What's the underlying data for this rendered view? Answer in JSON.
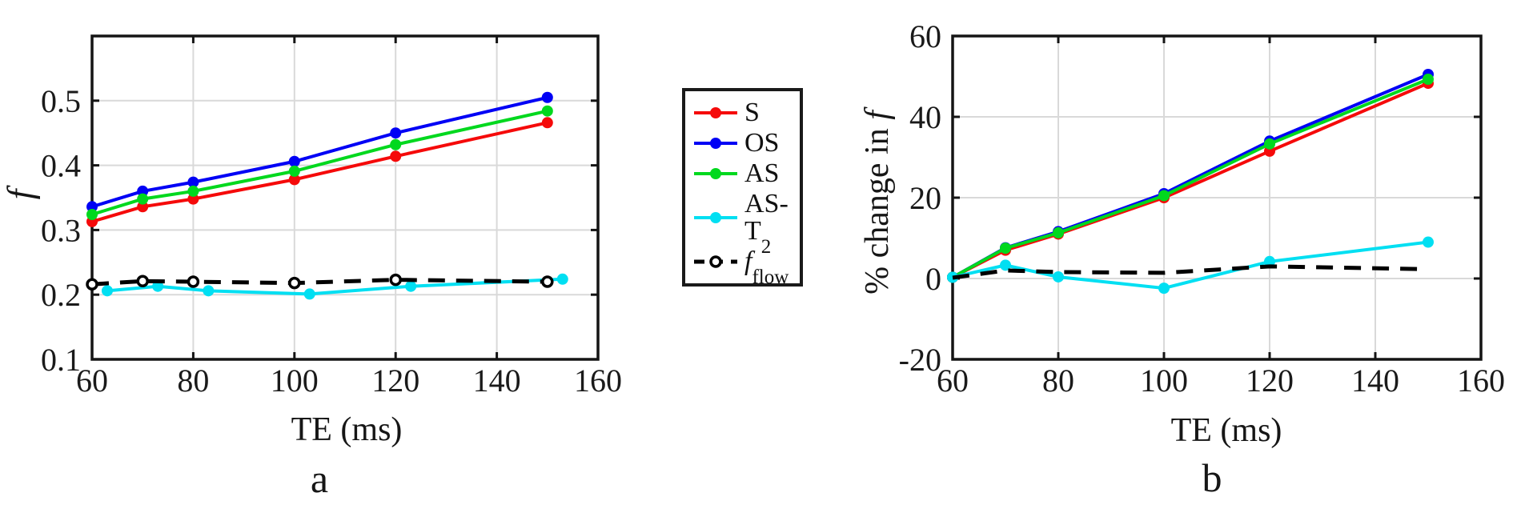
{
  "colors": {
    "red": "#f50a0a",
    "blue": "#0000f5",
    "green": "#00d81e",
    "cyan": "#00dff2",
    "black": "#000000",
    "axis": "#141414",
    "grid": "#d9d9d9",
    "tick_label": "#1a1a1a",
    "background": "#ffffff"
  },
  "legend": {
    "items": [
      {
        "label": "S",
        "sub": "",
        "color_key": "red",
        "line": "solid",
        "marker": "filled"
      },
      {
        "label": "OS",
        "sub": "",
        "color_key": "blue",
        "line": "solid",
        "marker": "filled"
      },
      {
        "label": "AS",
        "sub": "",
        "color_key": "green",
        "line": "solid",
        "marker": "filled"
      },
      {
        "label": "AS-T",
        "sub": "2",
        "color_key": "cyan",
        "line": "solid",
        "marker": "filled"
      },
      {
        "label": "f",
        "sub": "flow",
        "color_key": "black",
        "line": "dashed",
        "marker": "open"
      }
    ]
  },
  "chart_data": [
    {
      "type": "line",
      "caption": "a",
      "xlabel": "TE (ms)",
      "ylabel": "f",
      "xlim": [
        60,
        160
      ],
      "ylim": [
        0.1,
        0.6
      ],
      "xticks": [
        60,
        80,
        100,
        120,
        140,
        160
      ],
      "yticks": [
        0.1,
        0.2,
        0.3,
        0.4,
        0.5
      ],
      "ytick_decimals": 1,
      "grid": true,
      "series": [
        {
          "name": "S",
          "color_key": "red",
          "dash": false,
          "marker": "filled",
          "x": [
            60,
            70,
            80,
            100,
            120,
            150
          ],
          "y": [
            0.313,
            0.336,
            0.348,
            0.378,
            0.414,
            0.466
          ]
        },
        {
          "name": "OS",
          "color_key": "blue",
          "dash": false,
          "marker": "filled",
          "x": [
            60,
            70,
            80,
            100,
            120,
            150
          ],
          "y": [
            0.336,
            0.36,
            0.374,
            0.406,
            0.45,
            0.505
          ]
        },
        {
          "name": "AS",
          "color_key": "green",
          "dash": false,
          "marker": "filled",
          "x": [
            60,
            70,
            80,
            100,
            120,
            150
          ],
          "y": [
            0.324,
            0.348,
            0.36,
            0.391,
            0.432,
            0.484
          ]
        },
        {
          "name": "AS-T2",
          "color_key": "cyan",
          "dash": false,
          "marker": "filled",
          "x": [
            63,
            73,
            83,
            103,
            123,
            153
          ],
          "y": [
            0.206,
            0.213,
            0.206,
            0.201,
            0.213,
            0.224
          ]
        },
        {
          "name": "f_flow",
          "color_key": "black",
          "dash": true,
          "marker": "open",
          "x": [
            60,
            70,
            80,
            100,
            120,
            150
          ],
          "y": [
            0.216,
            0.221,
            0.22,
            0.218,
            0.223,
            0.22
          ]
        }
      ]
    },
    {
      "type": "line",
      "caption": "b",
      "xlabel": "TE (ms)",
      "ylabel": "% change in f",
      "ylabel_text": "% change in ",
      "ylabel_var": "f",
      "xlim": [
        60,
        160
      ],
      "ylim": [
        -20,
        60
      ],
      "xticks": [
        60,
        80,
        100,
        120,
        140,
        160
      ],
      "yticks": [
        -20,
        0,
        20,
        40,
        60
      ],
      "ytick_decimals": 0,
      "grid": true,
      "series": [
        {
          "name": "S",
          "color_key": "red",
          "dash": false,
          "marker": "filled",
          "x": [
            60,
            70,
            80,
            100,
            120,
            150
          ],
          "y": [
            0.3,
            7.0,
            11.0,
            20.0,
            31.5,
            48.3
          ]
        },
        {
          "name": "OS",
          "color_key": "blue",
          "dash": false,
          "marker": "filled",
          "x": [
            60,
            70,
            80,
            100,
            120,
            150
          ],
          "y": [
            0.3,
            7.6,
            11.6,
            21.0,
            34.0,
            50.5
          ]
        },
        {
          "name": "AS",
          "color_key": "green",
          "dash": false,
          "marker": "filled",
          "x": [
            60,
            70,
            80,
            100,
            120,
            150
          ],
          "y": [
            0.3,
            7.5,
            11.3,
            20.5,
            33.3,
            49.3
          ]
        },
        {
          "name": "AS-T2",
          "color_key": "cyan",
          "dash": false,
          "marker": "filled",
          "x": [
            60,
            70,
            80,
            100,
            120,
            150
          ],
          "y": [
            0.3,
            3.3,
            0.4,
            -2.4,
            4.2,
            9.0
          ]
        },
        {
          "name": "f_flow",
          "color_key": "black",
          "dash": true,
          "marker": "none",
          "x": [
            60,
            70,
            80,
            100,
            120,
            150
          ],
          "y": [
            0.2,
            2.0,
            1.6,
            1.4,
            3.0,
            2.3
          ]
        }
      ]
    }
  ]
}
